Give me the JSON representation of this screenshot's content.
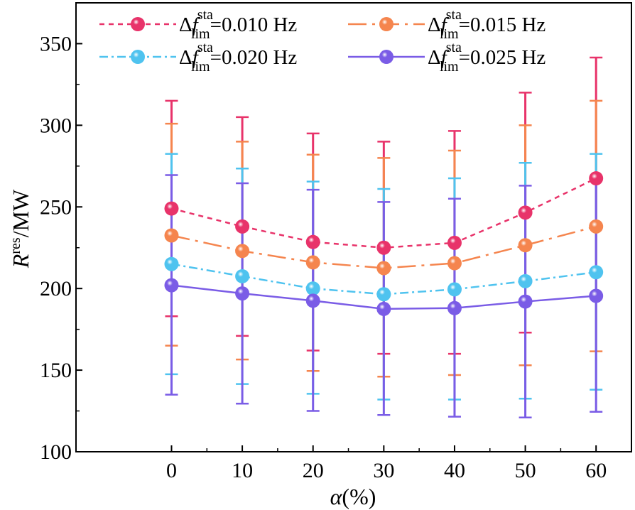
{
  "chart_data": {
    "type": "line",
    "title": "",
    "xlabel": {
      "main": "α",
      "rest": "(%)"
    },
    "ylabel": {
      "main": "R",
      "sup": "res",
      "rest": "/MW"
    },
    "categories": [
      0,
      10,
      20,
      30,
      40,
      50,
      60
    ],
    "xlim": [
      -13.5,
      65
    ],
    "ylim": [
      100,
      375
    ],
    "yticks": [
      100,
      150,
      200,
      250,
      300,
      350
    ],
    "xticks": [
      "0",
      "10",
      "20",
      "30",
      "40",
      "50",
      "60"
    ],
    "grid": false,
    "legend": "top",
    "legend_label": {
      "prefix": "Δ",
      "var": "f",
      "sup": "sta",
      "sub": "lim"
    },
    "series": [
      {
        "name": "0.010 Hz",
        "label_value": "=0.010 Hz",
        "color": "#e8336a",
        "dash": "7,6",
        "values": [
          249,
          238,
          228.5,
          225,
          228,
          246.5,
          267.5
        ],
        "err_upper": [
          315,
          305,
          295,
          290,
          296.5,
          320,
          341.5
        ],
        "err_lower": [
          183,
          171,
          162,
          160,
          160,
          173,
          194
        ]
      },
      {
        "name": "0.015 Hz",
        "label_value": "=0.015 Hz",
        "color": "#f5854e",
        "dash": "26,8,4,8",
        "values": [
          232.5,
          223,
          216,
          212.5,
          215.5,
          226.5,
          238
        ],
        "err_upper": [
          301,
          290,
          282,
          280,
          284.5,
          300,
          315
        ],
        "err_lower": [
          165,
          156.5,
          149.5,
          146,
          147,
          153,
          161.5
        ]
      },
      {
        "name": "0.020 Hz",
        "label_value": "=0.020 Hz",
        "color": "#4fc3ef",
        "dash": "12,5,3,5",
        "values": [
          215,
          207.5,
          200,
          196.5,
          199.5,
          204.5,
          210
        ],
        "err_upper": [
          282.5,
          273.5,
          265.5,
          261,
          267.5,
          277,
          282.5
        ],
        "err_lower": [
          147.5,
          141.5,
          135.5,
          132,
          132,
          132.5,
          138
        ]
      },
      {
        "name": "0.025 Hz",
        "label_value": "=0.025 Hz",
        "color": "#7a5ce6",
        "dash": "",
        "values": [
          202,
          197,
          192.5,
          187.5,
          188,
          192,
          195.5
        ],
        "err_upper": [
          269.5,
          264.5,
          260.5,
          253,
          255,
          263,
          266.5
        ],
        "err_lower": [
          135,
          129.5,
          125,
          122.5,
          121.5,
          121,
          124.5
        ]
      }
    ]
  }
}
